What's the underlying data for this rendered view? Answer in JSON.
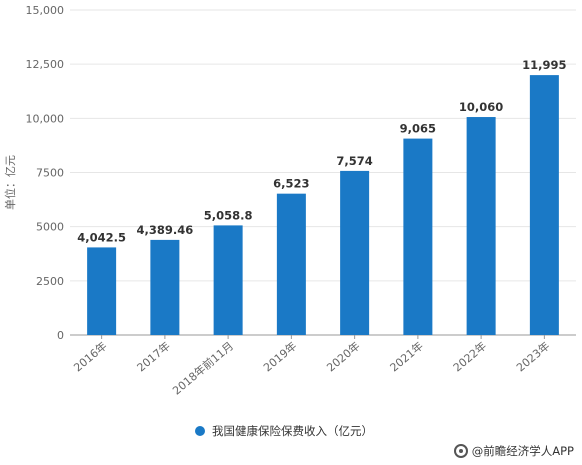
{
  "chart_data": {
    "type": "bar",
    "ylabel": "单位：亿元",
    "ylim": [
      0,
      15000
    ],
    "yticks": [
      0,
      2500,
      5000,
      7500,
      10000,
      12500,
      15000
    ],
    "ytick_labels": [
      "0",
      "2500",
      "5000",
      "7500",
      "10,000",
      "12,500",
      "15,000"
    ],
    "categories": [
      "2016年",
      "2017年",
      "2018年前11月",
      "2019年",
      "2020年",
      "2021年",
      "2022年",
      "2023年"
    ],
    "series": [
      {
        "name": "我国健康保险保费收入（亿元）",
        "values": [
          4042.5,
          4389.46,
          5058.8,
          6523,
          7574,
          9065,
          10060,
          11995
        ],
        "labels": [
          "4,042.5",
          "4,389.46",
          "5,058.8",
          "6,523",
          "7,574",
          "9,065",
          "10,060",
          "11,995"
        ]
      }
    ],
    "grid": true,
    "legend_position": "bottom",
    "colors": {
      "bar": "#1a79c6",
      "grid": "#e6e6e6",
      "axis": "#999999"
    }
  },
  "footer": {
    "source": "@前瞻经济学人APP"
  },
  "icons": {
    "legend_marker": "circle",
    "footer_logo": "wechat-eye-icon"
  }
}
